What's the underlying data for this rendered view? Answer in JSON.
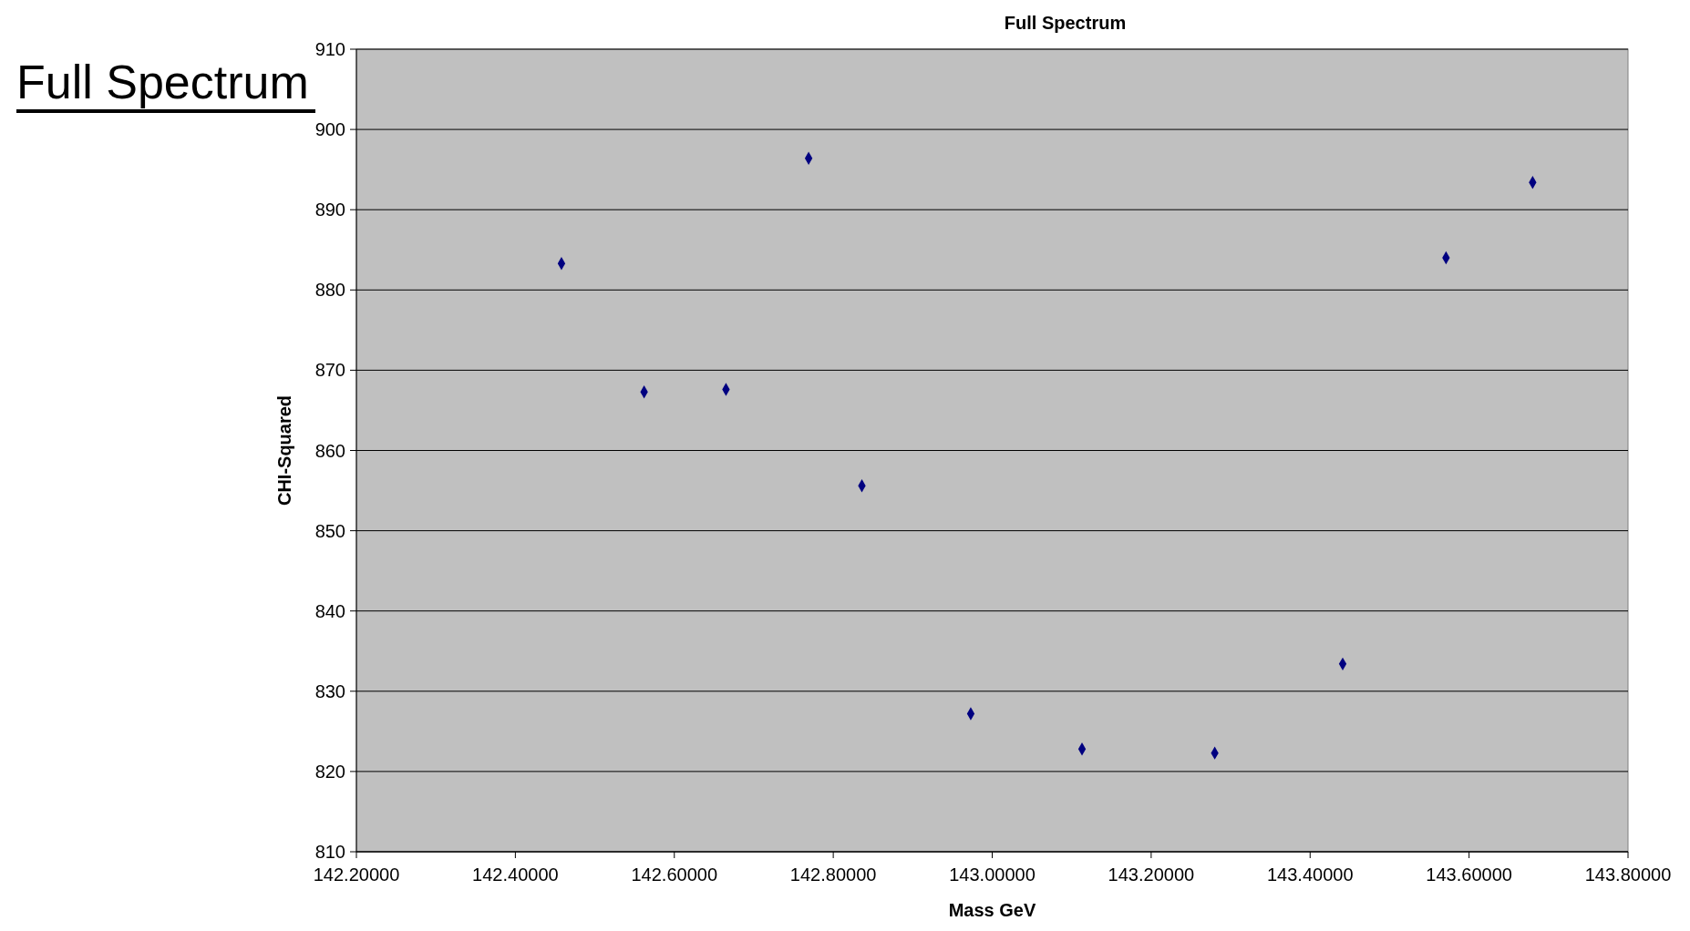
{
  "chart_data": {
    "type": "scatter",
    "title": "Full Spectrum",
    "annotations": [
      "Full Spectrum"
    ],
    "xlabel": "Mass GeV",
    "ylabel": "CHI-Squared",
    "x": [
      142.458,
      142.562,
      142.665,
      142.769,
      142.836,
      142.973,
      143.113,
      143.28,
      143.441,
      143.571,
      143.68
    ],
    "series": [
      {
        "color": "#000080",
        "values": [
          883.3,
          867.3,
          867.6,
          896.4,
          855.6,
          827.2,
          822.8,
          822.3,
          833.4,
          884.0,
          893.4
        ]
      }
    ],
    "xlim": [
      142.2,
      143.8
    ],
    "xticks": [
      {
        "value": 142.2,
        "label": "142.20000"
      },
      {
        "value": 142.4,
        "label": "142.40000"
      },
      {
        "value": 142.6,
        "label": "142.60000"
      },
      {
        "value": 142.8,
        "label": "142.80000"
      },
      {
        "value": 143.0,
        "label": "143.00000"
      },
      {
        "value": 143.2,
        "label": "143.20000"
      },
      {
        "value": 143.4,
        "label": "143.40000"
      },
      {
        "value": 143.6,
        "label": "143.60000"
      },
      {
        "value": 143.8,
        "label": "143.80000"
      }
    ],
    "ylim": [
      810,
      910
    ],
    "yticks": [
      810,
      820,
      830,
      840,
      850,
      860,
      870,
      880,
      890,
      900,
      910
    ],
    "grid": "y",
    "marker": "diamond"
  }
}
